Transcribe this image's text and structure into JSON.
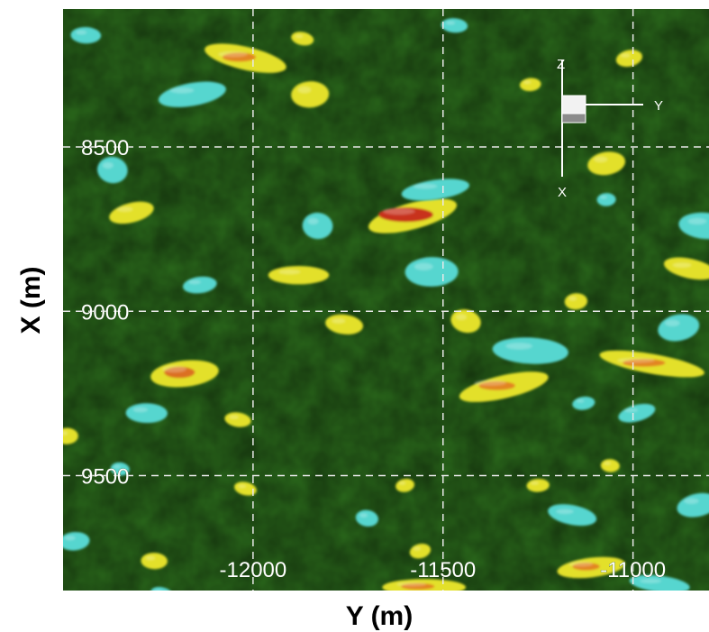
{
  "chart_data": {
    "type": "heatmap",
    "title": "",
    "xlabel": "Y (m)",
    "ylabel": "X (m)",
    "x_ticks": [
      -12000,
      -11500,
      -11000
    ],
    "y_ticks": [
      8500,
      9000,
      9500
    ],
    "xlim": [
      -12500,
      -10800
    ],
    "ylim": [
      9850,
      8080
    ],
    "grid": true,
    "colors": {
      "background": "#2b6a1c",
      "positive_low": "#e3e02a",
      "positive_high": "#c8321c",
      "negative": "#56d6cf"
    },
    "orientation_triad": {
      "up": "Z",
      "right": "Y",
      "down": "X"
    },
    "blobs": [
      {
        "x": -11580,
        "y": 8710,
        "rx": 120,
        "ry": 40,
        "level": 1.0
      },
      {
        "x": -11520,
        "y": 8630,
        "rx": 90,
        "ry": 30,
        "level": -0.6
      },
      {
        "x": -11530,
        "y": 8880,
        "rx": 70,
        "ry": 45,
        "level": -0.5
      },
      {
        "x": -11830,
        "y": 8740,
        "rx": 40,
        "ry": 40,
        "level": -0.4
      },
      {
        "x": -12020,
        "y": 8230,
        "rx": 110,
        "ry": 35,
        "level": 0.6
      },
      {
        "x": -12160,
        "y": 8340,
        "rx": 90,
        "ry": 35,
        "level": -0.5
      },
      {
        "x": -11850,
        "y": 8340,
        "rx": 50,
        "ry": 40,
        "level": 0.4
      },
      {
        "x": -11470,
        "y": 8130,
        "rx": 35,
        "ry": 22,
        "level": -0.4
      },
      {
        "x": -11870,
        "y": 8170,
        "rx": 30,
        "ry": 20,
        "level": 0.3
      },
      {
        "x": -11010,
        "y": 8230,
        "rx": 35,
        "ry": 25,
        "level": 0.4
      },
      {
        "x": -11270,
        "y": 8310,
        "rx": 28,
        "ry": 20,
        "level": 0.3
      },
      {
        "x": -12440,
        "y": 8160,
        "rx": 40,
        "ry": 25,
        "level": -0.4
      },
      {
        "x": -12370,
        "y": 8570,
        "rx": 40,
        "ry": 40,
        "level": -0.4
      },
      {
        "x": -12320,
        "y": 8700,
        "rx": 60,
        "ry": 30,
        "level": 0.4
      },
      {
        "x": -12140,
        "y": 8920,
        "rx": 45,
        "ry": 25,
        "level": -0.3
      },
      {
        "x": -11880,
        "y": 8890,
        "rx": 80,
        "ry": 28,
        "level": 0.4
      },
      {
        "x": -11760,
        "y": 9040,
        "rx": 50,
        "ry": 30,
        "level": 0.4
      },
      {
        "x": -11440,
        "y": 9030,
        "rx": 40,
        "ry": 35,
        "level": 0.4
      },
      {
        "x": -11070,
        "y": 8550,
        "rx": 50,
        "ry": 35,
        "level": 0.4
      },
      {
        "x": -11070,
        "y": 8660,
        "rx": 25,
        "ry": 20,
        "level": -0.3
      },
      {
        "x": -10810,
        "y": 8740,
        "rx": 70,
        "ry": 40,
        "level": -0.5
      },
      {
        "x": -10850,
        "y": 8870,
        "rx": 70,
        "ry": 30,
        "level": 0.5
      },
      {
        "x": -10880,
        "y": 9050,
        "rx": 55,
        "ry": 40,
        "level": -0.5
      },
      {
        "x": -11150,
        "y": 8970,
        "rx": 30,
        "ry": 25,
        "level": 0.3
      },
      {
        "x": -11270,
        "y": 9120,
        "rx": 100,
        "ry": 40,
        "level": -0.5
      },
      {
        "x": -10950,
        "y": 9160,
        "rx": 140,
        "ry": 30,
        "level": 0.6
      },
      {
        "x": -11340,
        "y": 9230,
        "rx": 120,
        "ry": 35,
        "level": 0.6
      },
      {
        "x": -12180,
        "y": 9190,
        "rx": 90,
        "ry": 40,
        "level": 0.7
      },
      {
        "x": -12280,
        "y": 9310,
        "rx": 55,
        "ry": 30,
        "level": -0.4
      },
      {
        "x": -12040,
        "y": 9330,
        "rx": 35,
        "ry": 22,
        "level": 0.4
      },
      {
        "x": -10990,
        "y": 9310,
        "rx": 50,
        "ry": 25,
        "level": -0.4
      },
      {
        "x": -11130,
        "y": 9280,
        "rx": 30,
        "ry": 20,
        "level": -0.3
      },
      {
        "x": -12490,
        "y": 9380,
        "rx": 30,
        "ry": 25,
        "level": 0.4
      },
      {
        "x": -12350,
        "y": 9480,
        "rx": 25,
        "ry": 20,
        "level": -0.3
      },
      {
        "x": -12020,
        "y": 9540,
        "rx": 30,
        "ry": 20,
        "level": 0.4
      },
      {
        "x": -11600,
        "y": 9530,
        "rx": 25,
        "ry": 20,
        "level": 0.3
      },
      {
        "x": -11250,
        "y": 9530,
        "rx": 30,
        "ry": 20,
        "level": 0.3
      },
      {
        "x": -11060,
        "y": 9470,
        "rx": 25,
        "ry": 20,
        "level": 0.3
      },
      {
        "x": -11160,
        "y": 9620,
        "rx": 65,
        "ry": 30,
        "level": -0.5
      },
      {
        "x": -10830,
        "y": 9590,
        "rx": 55,
        "ry": 35,
        "level": -0.5
      },
      {
        "x": -12470,
        "y": 9700,
        "rx": 40,
        "ry": 28,
        "level": -0.4
      },
      {
        "x": -12260,
        "y": 9760,
        "rx": 35,
        "ry": 25,
        "level": 0.4
      },
      {
        "x": -11700,
        "y": 9630,
        "rx": 30,
        "ry": 25,
        "level": -0.3
      },
      {
        "x": -11560,
        "y": 9730,
        "rx": 28,
        "ry": 22,
        "level": 0.3
      },
      {
        "x": -11110,
        "y": 9780,
        "rx": 90,
        "ry": 30,
        "level": 0.6
      },
      {
        "x": -11550,
        "y": 9840,
        "rx": 110,
        "ry": 25,
        "level": 0.6
      },
      {
        "x": -10930,
        "y": 9830,
        "rx": 80,
        "ry": 25,
        "level": -0.4
      },
      {
        "x": -12240,
        "y": 9860,
        "rx": 30,
        "ry": 20,
        "level": -0.3
      }
    ]
  }
}
